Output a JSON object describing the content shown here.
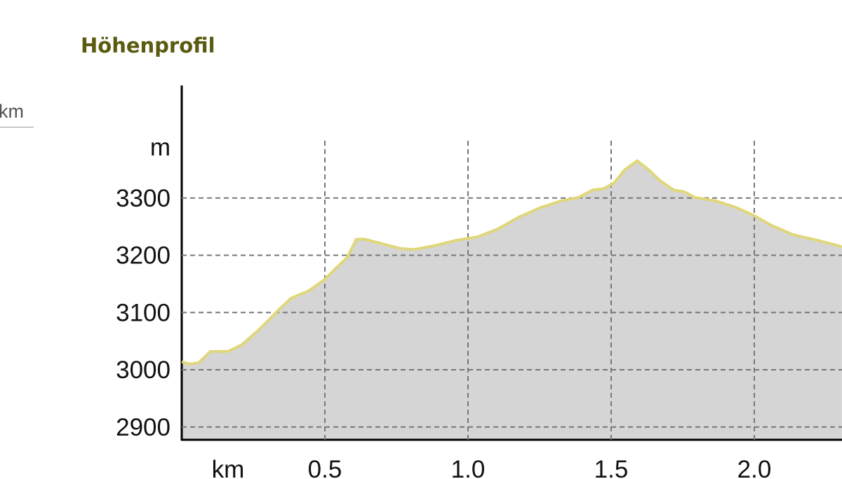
{
  "section_title": "Höhenprofil",
  "side_fragment": "km",
  "chart_data": {
    "type": "area",
    "title": "",
    "xlabel": "km",
    "ylabel": "m",
    "xlim": [
      0,
      2.31
    ],
    "ylim": [
      2878,
      3400
    ],
    "grid": true,
    "x_ticks": [
      "0.5",
      "1.0",
      "1.5",
      "2.0"
    ],
    "x_tick_values": [
      0.5,
      1.0,
      1.5,
      2.0
    ],
    "y_ticks": [
      "2900",
      "3000",
      "3100",
      "3200",
      "3300"
    ],
    "y_tick_values": [
      2900,
      3000,
      3100,
      3200,
      3300
    ],
    "colors": {
      "line": "#e0d67a",
      "fill": "#d3d3d3",
      "grid": "#777777",
      "title": "#5a5a10"
    },
    "x": [
      0,
      0.027,
      0.059,
      0.1,
      0.162,
      0.211,
      0.272,
      0.346,
      0.382,
      0.444,
      0.498,
      0.542,
      0.578,
      0.61,
      0.64,
      0.701,
      0.762,
      0.811,
      0.885,
      0.958,
      1.032,
      1.105,
      1.179,
      1.252,
      1.326,
      1.387,
      1.436,
      1.473,
      1.51,
      1.547,
      1.591,
      1.632,
      1.669,
      1.718,
      1.755,
      1.792,
      1.865,
      1.939,
      2.0,
      2.061,
      2.135,
      2.221,
      2.306
    ],
    "y": [
      3014,
      3010,
      3012,
      3032,
      3032,
      3044,
      3071,
      3108,
      3125,
      3138,
      3157,
      3179,
      3196,
      3228,
      3228,
      3220,
      3212,
      3210,
      3217,
      3226,
      3232,
      3246,
      3267,
      3283,
      3295,
      3301,
      3314,
      3316,
      3326,
      3349,
      3365,
      3349,
      3331,
      3314,
      3311,
      3301,
      3295,
      3283,
      3269,
      3252,
      3236,
      3226,
      3215
    ]
  }
}
